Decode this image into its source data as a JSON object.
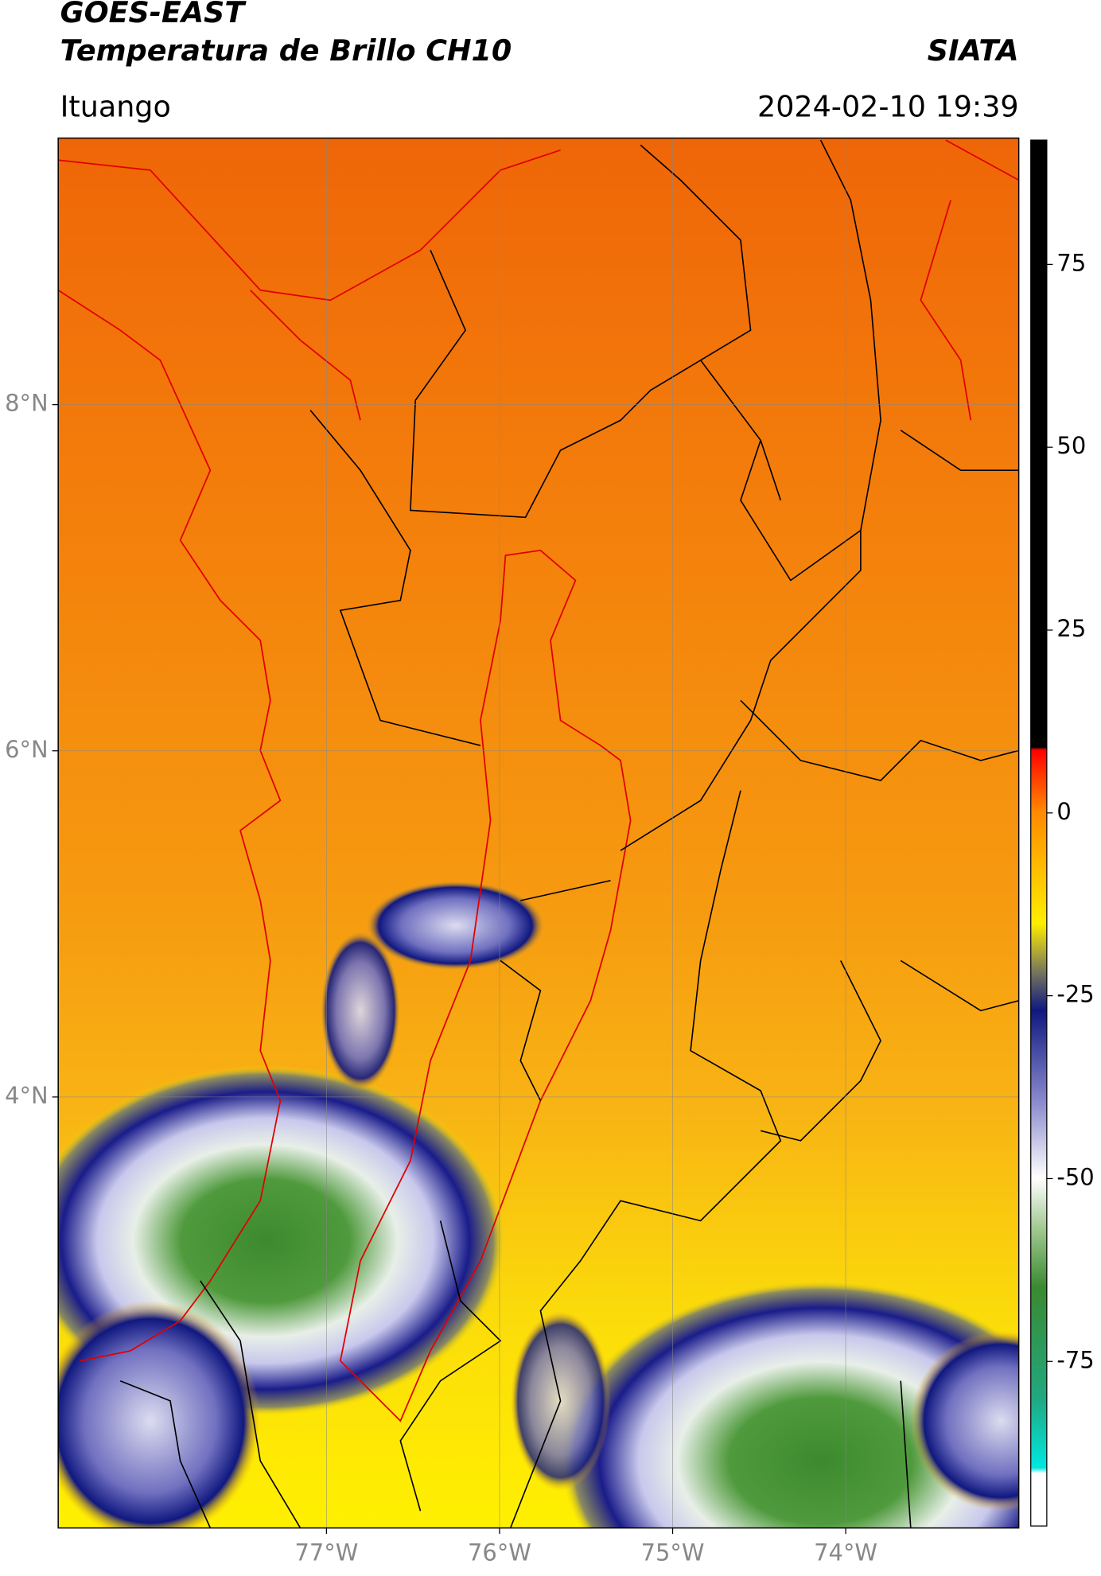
{
  "header": {
    "title": "GOES-EAST",
    "subtitle": "Temperatura de Brillo CH10",
    "brand": "SIATA",
    "location": "Ituango",
    "timestamp": "2024-02-10 19:39"
  },
  "map": {
    "lonlim": [
      -78.55,
      -73.0
    ],
    "latlim": [
      1.51,
      9.54
    ],
    "xticks": [
      {
        "value": -77,
        "label": "77°W"
      },
      {
        "value": -76,
        "label": "76°W"
      },
      {
        "value": -75,
        "label": "75°W"
      },
      {
        "value": -74,
        "label": "74°W"
      }
    ],
    "yticks": [
      {
        "value": 8,
        "label": "8°N"
      },
      {
        "value": 6,
        "label": "6°N"
      },
      {
        "value": 4,
        "label": "4°N"
      }
    ],
    "grid": true
  },
  "colorbar": {
    "lim": [
      -97.5,
      92
    ],
    "ticks": [
      75,
      50,
      25,
      0,
      -25,
      -50,
      -75
    ]
  }
}
